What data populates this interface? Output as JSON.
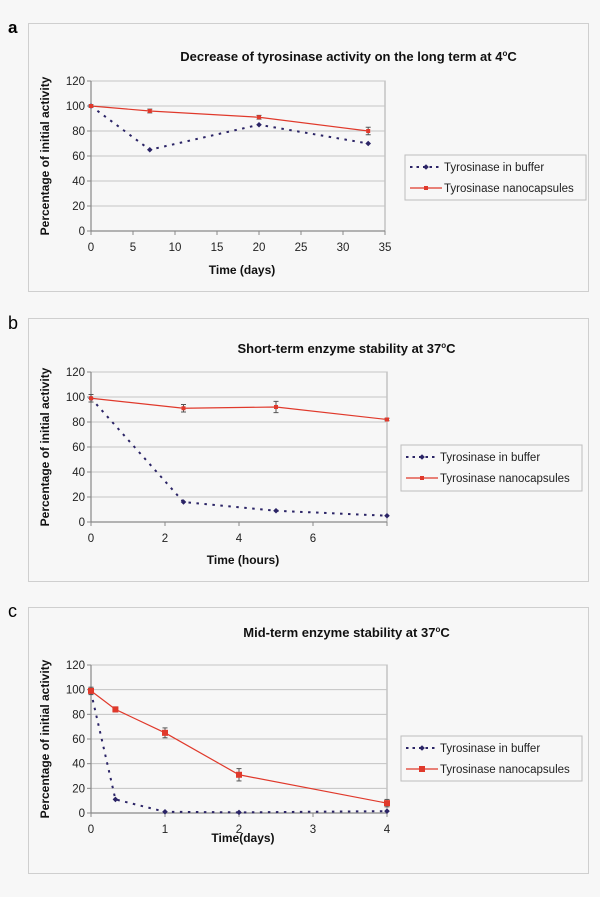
{
  "panels": [
    {
      "letter": "a"
    },
    {
      "letter": "b"
    },
    {
      "letter": "c"
    }
  ],
  "chart_data": [
    {
      "type": "line",
      "title": "Decrease of tyrosinase activity on the long term at 4°C",
      "title_main": "Decrease of tyrosinase activity on the long term at 4",
      "title_unit": "C",
      "xlabel": "Time (days)",
      "ylabel": "Percentage of initial activity",
      "xlim": [
        0,
        35
      ],
      "ylim": [
        0,
        120
      ],
      "xticks": [
        0,
        5,
        10,
        15,
        20,
        25,
        30,
        35
      ],
      "xtick_labels": [
        "0",
        "5",
        "10",
        "15",
        "20",
        "25",
        "30",
        "35"
      ],
      "yticks": [
        0,
        20,
        40,
        60,
        80,
        100,
        120
      ],
      "ytick_labels": [
        "0",
        "20",
        "40",
        "60",
        "80",
        "100",
        "120"
      ],
      "grid": true,
      "legend": "right",
      "series": [
        {
          "name": "Tyrosinase in buffer",
          "style": "dashed",
          "marker": "diamond",
          "color": "#2b2466",
          "x": [
            0,
            7,
            20,
            33
          ],
          "y": [
            100,
            65,
            85,
            70
          ],
          "err": [
            0,
            0,
            0,
            0
          ]
        },
        {
          "name": "Tyrosinase nanocapsules",
          "style": "solid",
          "marker": "square",
          "color": "#e0392b",
          "x": [
            0,
            7,
            20,
            33
          ],
          "y": [
            100,
            96,
            91,
            80
          ],
          "err": [
            1,
            1.5,
            1.5,
            3
          ]
        }
      ]
    },
    {
      "type": "line",
      "title": "Short-term enzyme stability at 37°C",
      "title_main": "Short-term enzyme stability at 37",
      "title_unit": "C",
      "xlabel": "Time (hours)",
      "ylabel": "Percentage of initial activity",
      "xlim": [
        0,
        8
      ],
      "ylim": [
        0,
        120
      ],
      "xticks": [
        0,
        2,
        4,
        6,
        8
      ],
      "xtick_labels": [
        "0",
        "2",
        "4",
        "6",
        ""
      ],
      "yticks": [
        0,
        20,
        40,
        60,
        80,
        100,
        120
      ],
      "ytick_labels": [
        "0",
        "20",
        "40",
        "60",
        "80",
        "100",
        "120"
      ],
      "grid": true,
      "legend": "right",
      "series": [
        {
          "name": "Tyrosinase in buffer",
          "style": "dashed",
          "marker": "diamond",
          "color": "#2b2466",
          "x": [
            0,
            2.5,
            5,
            8
          ],
          "y": [
            99,
            16,
            9,
            5
          ],
          "err": [
            0,
            0,
            0,
            0
          ]
        },
        {
          "name": "Tyrosinase nanocapsules",
          "style": "solid",
          "marker": "square",
          "color": "#e0392b",
          "x": [
            0,
            2.5,
            5,
            8
          ],
          "y": [
            99,
            91,
            92,
            82
          ],
          "err": [
            3,
            3,
            4.5,
            1
          ]
        }
      ]
    },
    {
      "type": "line",
      "title": "Mid-term enzyme stability at 37°C",
      "title_main": "Mid-term enzyme stability at 37",
      "title_unit": "C",
      "xlabel": "Time(days)",
      "ylabel": "Percentage of initial activity",
      "xlim": [
        0,
        4
      ],
      "ylim": [
        0,
        120
      ],
      "x_category_axis": true,
      "xticks": [
        0,
        1,
        2,
        3,
        4
      ],
      "xtick_labels": [
        "0",
        "1",
        "2",
        "3",
        "4"
      ],
      "yticks": [
        0,
        20,
        40,
        60,
        80,
        100,
        120
      ],
      "ytick_labels": [
        "0",
        "20",
        "40",
        "60",
        "80",
        "100",
        "120"
      ],
      "grid": true,
      "legend": "right",
      "series": [
        {
          "name": "Tyrosinase in buffer",
          "style": "dashed",
          "marker": "diamond",
          "color": "#2b2466",
          "x": [
            0,
            0.33,
            1,
            2,
            4
          ],
          "y": [
            98,
            11,
            1,
            0.5,
            1.5
          ],
          "err": [
            0,
            0,
            0,
            0,
            0
          ]
        },
        {
          "name": "Tyrosinase nanocapsules",
          "style": "solid",
          "marker": "square",
          "color": "#e0392b",
          "x": [
            0,
            0.33,
            1,
            2,
            4
          ],
          "y": [
            99,
            84,
            65,
            31,
            8
          ],
          "err": [
            3,
            2,
            4,
            5,
            3
          ]
        }
      ]
    }
  ]
}
